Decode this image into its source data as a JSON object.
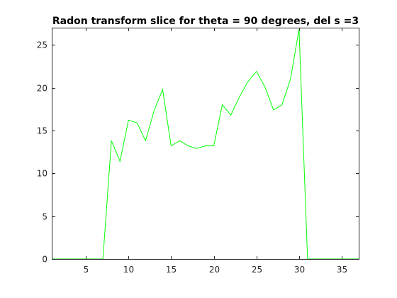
{
  "chart_data": {
    "type": "line",
    "title": "Radon transform slice for theta = 90 degrees, del s =3",
    "xlabel": "",
    "ylabel": "",
    "xlim": [
      1,
      37
    ],
    "ylim": [
      0,
      27
    ],
    "grid": false,
    "line_color": "#00ff00",
    "axis_color": "#262626",
    "x_ticks": [
      {
        "value": 5,
        "label": "5"
      },
      {
        "value": 10,
        "label": "10"
      },
      {
        "value": 15,
        "label": "15"
      },
      {
        "value": 20,
        "label": "20"
      },
      {
        "value": 25,
        "label": "25"
      },
      {
        "value": 30,
        "label": "30"
      },
      {
        "value": 35,
        "label": "35"
      }
    ],
    "y_ticks": [
      {
        "value": 0,
        "label": "0"
      },
      {
        "value": 5,
        "label": "5"
      },
      {
        "value": 10,
        "label": "10"
      },
      {
        "value": 15,
        "label": "15"
      },
      {
        "value": 20,
        "label": "20"
      },
      {
        "value": 25,
        "label": "25"
      }
    ],
    "x": [
      1,
      2,
      3,
      4,
      5,
      6,
      7,
      8,
      9,
      10,
      11,
      12,
      13,
      14,
      15,
      16,
      17,
      18,
      19,
      20,
      21,
      22,
      23,
      24,
      25,
      26,
      27,
      28,
      29,
      30,
      31,
      32,
      33,
      34,
      35,
      36,
      37
    ],
    "y": [
      0,
      0,
      0,
      0,
      0,
      0,
      0,
      13.8,
      11.4,
      16.2,
      15.9,
      13.8,
      17.3,
      19.8,
      13.2,
      13.8,
      13.2,
      12.9,
      13.2,
      13.2,
      18.0,
      16.8,
      18.9,
      20.7,
      21.9,
      20.1,
      17.4,
      18.0,
      21.0,
      26.8,
      0,
      0,
      0,
      0,
      0,
      0,
      0
    ]
  }
}
